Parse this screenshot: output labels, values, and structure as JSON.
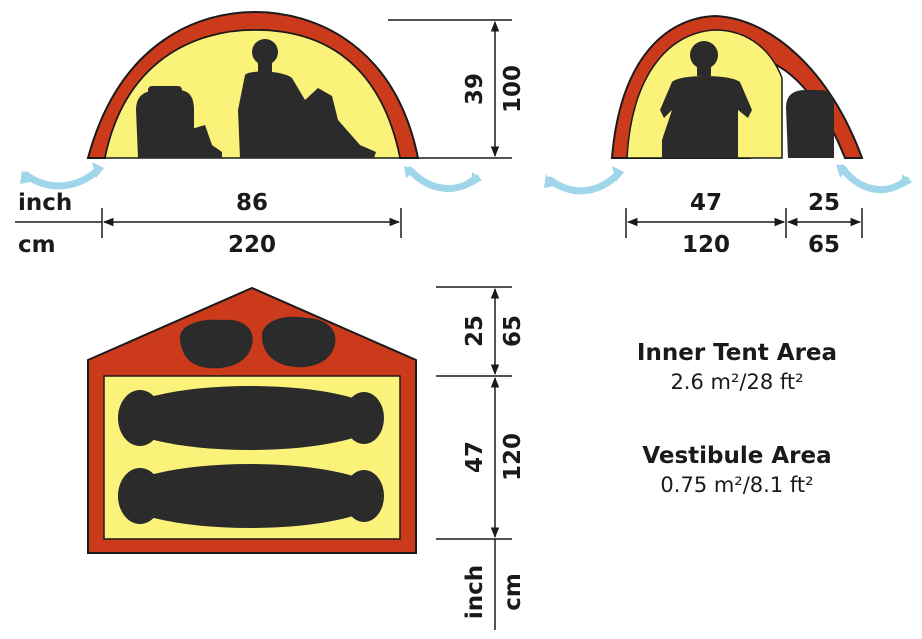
{
  "colors": {
    "fly": "#cc3a1c",
    "fly_dark": "#b8321a",
    "inner": "#fbf27a",
    "silhouette": "#2b2b2b",
    "arrow": "#9fd6ea",
    "line": "#1a1a1a"
  },
  "side_view": {
    "height_in": "39",
    "height_cm": "100",
    "width_in": "86",
    "width_cm": "220",
    "unit_in": "inch",
    "unit_cm": "cm"
  },
  "end_view": {
    "inner_in": "47",
    "inner_cm": "120",
    "vestibule_in": "25",
    "vestibule_cm": "65"
  },
  "floor_plan": {
    "vestibule_in": "25",
    "vestibule_cm": "65",
    "inner_in": "47",
    "inner_cm": "120",
    "unit_in": "inch",
    "unit_cm": "cm"
  },
  "areas": {
    "inner_title": "Inner Tent Area",
    "inner_value": "2.6 m²/28 ft²",
    "vestibule_title": "Vestibule Area",
    "vestibule_value": "0.75 m²/8.1 ft²"
  }
}
